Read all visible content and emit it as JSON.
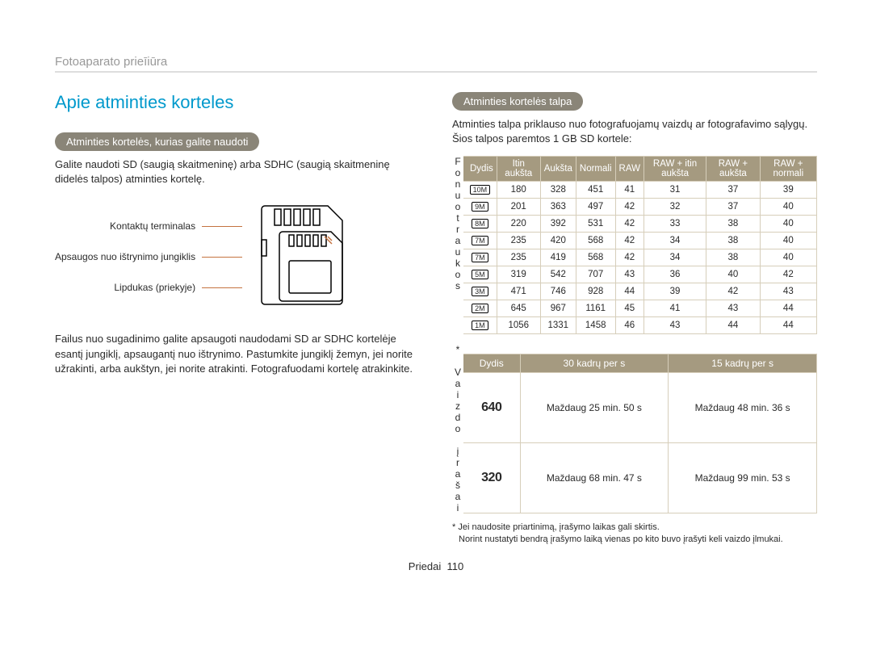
{
  "breadcrumb": "Fotoaparato prieīiūra",
  "main_heading": "Apie atminties korteles",
  "pill1": "Atminties kortelės, kurias galite naudoti",
  "intro1": "Galite naudoti SD (saugią skaitmeninę) arba SDHC (saugią skaitmeninę didelės talpos) atminties kortelę.",
  "card_labels": {
    "a": "Kontaktų terminalas",
    "b": "Apsaugos nuo ištrynimo jungiklis",
    "c": "Lipdukas (priekyje)"
  },
  "body2": "Failus nuo sugadinimo galite apsaugoti naudodami SD ar SDHC kortelėje esantį jungiklį, apsaugantį nuo ištrynimo. Pastumkite jungiklį žemyn, jei norite užrakinti, arba aukštyn, jei norite atrakinti. Fotografuodami kortelę atrakinkite.",
  "pill2": "Atminties kortelės talpa",
  "intro2": "Atminties talpa priklauso nuo fotografuojamų vaizdų ar fotografavimo sąlygų. Šios talpos paremtos 1 GB SD kortele:",
  "table1": {
    "side": "Fonuotraukos",
    "headers": [
      "Dydis",
      "Itin aukšta",
      "Aukšta",
      "Normali",
      "RAW",
      "RAW + itin aukšta",
      "RAW + aukšta",
      "RAW + normali"
    ],
    "sizes": [
      "10M",
      "9M",
      "8M",
      "7M",
      "7M",
      "5M",
      "3M",
      "2M",
      "1M"
    ],
    "rows": [
      [
        180,
        328,
        451,
        41,
        31,
        37,
        39
      ],
      [
        201,
        363,
        497,
        42,
        32,
        37,
        40
      ],
      [
        220,
        392,
        531,
        42,
        33,
        38,
        40
      ],
      [
        235,
        420,
        568,
        42,
        34,
        38,
        40
      ],
      [
        235,
        419,
        568,
        42,
        34,
        38,
        40
      ],
      [
        319,
        542,
        707,
        43,
        36,
        40,
        42
      ],
      [
        471,
        746,
        928,
        44,
        39,
        42,
        43
      ],
      [
        645,
        967,
        1161,
        45,
        41,
        43,
        44
      ],
      [
        1056,
        1331,
        1458,
        46,
        43,
        44,
        44
      ]
    ]
  },
  "table2": {
    "side": "* Vaizdo įrašai",
    "headers": [
      "Dydis",
      "30 kadrų per s",
      "15 kadrų per s"
    ],
    "sizes": [
      "640",
      "320"
    ],
    "rows": [
      [
        "Maždaug 25 min. 50 s",
        "Maždaug 48 min. 36 s"
      ],
      [
        "Maždaug 68 min. 47 s",
        "Maždaug 99 min. 53 s"
      ]
    ]
  },
  "footnote1": "* Jei naudosite priartinimą, įrašymo laikas gali skirtis.",
  "footnote2": "Norint nustatyti bendrą įrašymo laiką vienas po kito buvo įrašyti keli vaizdo įlmukai.",
  "pagefoot_label": "Priedai",
  "pagefoot_num": "110"
}
